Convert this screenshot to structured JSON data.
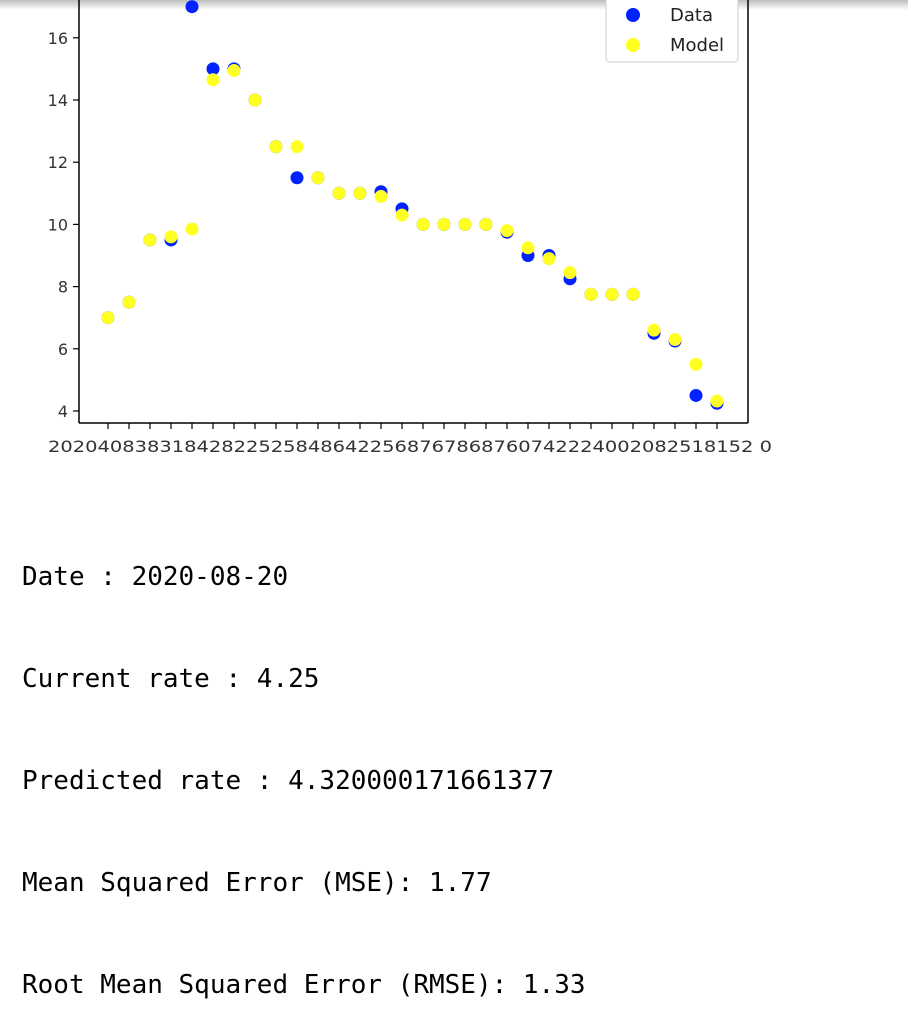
{
  "chart_data": {
    "type": "scatter",
    "title": "",
    "xlabel": "",
    "ylabel": "",
    "ylim": [
      3.6,
      17.2
    ],
    "y_ticks": [
      4,
      6,
      8,
      10,
      12,
      14,
      16
    ],
    "x_tick_text": "202040838318428225258486422568767868760742224002082518152 0",
    "legend": {
      "position": "upper right"
    },
    "series": [
      {
        "name": "Data",
        "color": "#0022ff",
        "values": [
          7.0,
          7.5,
          9.5,
          9.5,
          17.0,
          15.0,
          15.0,
          14.0,
          12.5,
          11.5,
          11.5,
          11.0,
          11.0,
          11.05,
          10.5,
          10.0,
          10.0,
          10.0,
          10.0,
          9.75,
          9.0,
          9.0,
          8.25,
          7.75,
          7.75,
          7.75,
          6.5,
          6.25,
          4.5,
          4.25
        ]
      },
      {
        "name": "Model",
        "color": "#ffff22",
        "values": [
          7.0,
          7.5,
          9.5,
          9.6,
          9.85,
          14.65,
          14.95,
          14.0,
          12.5,
          12.5,
          11.5,
          11.0,
          11.0,
          10.9,
          10.3,
          10.0,
          10.0,
          10.0,
          10.0,
          9.8,
          9.25,
          8.9,
          8.45,
          7.75,
          7.75,
          7.75,
          6.6,
          6.3,
          5.5,
          4.32
        ]
      }
    ]
  },
  "output_lines": {
    "date": "Date : 2020-08-20",
    "current_rate": "Current rate : 4.25",
    "predicted_rate": "Predicted rate : 4.320000171661377",
    "mse": "Mean Squared Error (MSE): 1.77",
    "rmse": "Root Mean Squared Error (RMSE): 1.33"
  }
}
